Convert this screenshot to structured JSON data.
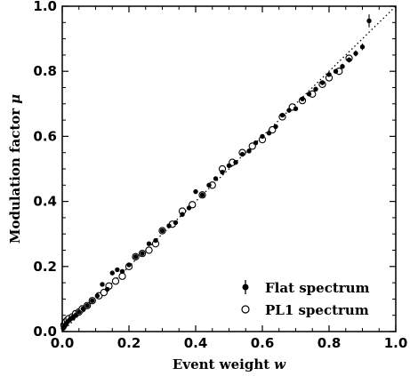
{
  "chart_data": {
    "type": "scatter",
    "title": "",
    "xlabel": "Event weight",
    "xlabel_symbol": "w",
    "ylabel": "Modulation factor",
    "ylabel_symbol": "μ",
    "xlim": [
      0.0,
      1.0
    ],
    "ylim": [
      0.0,
      1.0
    ],
    "xticks": [
      "0.0",
      "0.2",
      "0.4",
      "0.6",
      "0.8",
      "1.0"
    ],
    "yticks": [
      "0.0",
      "0.2",
      "0.4",
      "0.6",
      "0.8",
      "1.0"
    ],
    "grid": false,
    "legend_position": "bottom-right",
    "reference_line": {
      "style": "dotted",
      "from": [
        0,
        0
      ],
      "to": [
        1,
        1
      ]
    },
    "series": [
      {
        "name": "Flat spectrum",
        "marker": "filled-circle",
        "error_bars": true,
        "x": [
          0.003,
          0.006,
          0.009,
          0.012,
          0.016,
          0.021,
          0.026,
          0.032,
          0.04,
          0.05,
          0.062,
          0.075,
          0.09,
          0.105,
          0.12,
          0.135,
          0.15,
          0.165,
          0.18,
          0.2,
          0.22,
          0.24,
          0.26,
          0.28,
          0.3,
          0.32,
          0.34,
          0.36,
          0.38,
          0.4,
          0.42,
          0.44,
          0.46,
          0.48,
          0.5,
          0.52,
          0.54,
          0.56,
          0.58,
          0.6,
          0.62,
          0.64,
          0.66,
          0.68,
          0.7,
          0.72,
          0.74,
          0.76,
          0.78,
          0.8,
          0.82,
          0.84,
          0.86,
          0.88,
          0.9,
          0.92
        ],
        "y": [
          0.01,
          0.015,
          0.02,
          0.025,
          0.03,
          0.035,
          0.04,
          0.045,
          0.05,
          0.06,
          0.07,
          0.08,
          0.095,
          0.11,
          0.145,
          0.13,
          0.18,
          0.19,
          0.185,
          0.205,
          0.23,
          0.24,
          0.27,
          0.28,
          0.31,
          0.325,
          0.335,
          0.36,
          0.38,
          0.43,
          0.42,
          0.45,
          0.47,
          0.49,
          0.51,
          0.52,
          0.545,
          0.555,
          0.58,
          0.6,
          0.61,
          0.63,
          0.665,
          0.68,
          0.685,
          0.715,
          0.73,
          0.745,
          0.765,
          0.79,
          0.8,
          0.815,
          0.835,
          0.855,
          0.875,
          0.955
        ],
        "yerr": [
          0.003,
          0.003,
          0.003,
          0.003,
          0.003,
          0.003,
          0.003,
          0.003,
          0.003,
          0.003,
          0.003,
          0.003,
          0.004,
          0.004,
          0.004,
          0.004,
          0.004,
          0.004,
          0.004,
          0.004,
          0.004,
          0.004,
          0.004,
          0.004,
          0.004,
          0.004,
          0.004,
          0.004,
          0.004,
          0.005,
          0.005,
          0.005,
          0.005,
          0.005,
          0.005,
          0.005,
          0.005,
          0.005,
          0.005,
          0.005,
          0.005,
          0.006,
          0.006,
          0.006,
          0.006,
          0.006,
          0.006,
          0.006,
          0.007,
          0.007,
          0.007,
          0.008,
          0.008,
          0.009,
          0.01,
          0.02
        ]
      },
      {
        "name": "PL1 spectrum",
        "marker": "open-circle",
        "error_bars": false,
        "x": [
          0.005,
          0.01,
          0.015,
          0.02,
          0.03,
          0.04,
          0.05,
          0.06,
          0.075,
          0.09,
          0.11,
          0.125,
          0.14,
          0.16,
          0.18,
          0.2,
          0.22,
          0.24,
          0.26,
          0.28,
          0.3,
          0.33,
          0.36,
          0.39,
          0.42,
          0.45,
          0.48,
          0.51,
          0.54,
          0.57,
          0.6,
          0.63,
          0.66,
          0.69,
          0.72,
          0.75,
          0.78,
          0.8,
          0.83,
          0.86
        ],
        "y": [
          0.02,
          0.03,
          0.035,
          0.04,
          0.045,
          0.055,
          0.06,
          0.07,
          0.08,
          0.095,
          0.11,
          0.12,
          0.14,
          0.155,
          0.17,
          0.2,
          0.23,
          0.24,
          0.25,
          0.27,
          0.31,
          0.33,
          0.37,
          0.39,
          0.42,
          0.45,
          0.5,
          0.52,
          0.55,
          0.57,
          0.59,
          0.62,
          0.66,
          0.69,
          0.71,
          0.73,
          0.76,
          0.78,
          0.8,
          0.84
        ]
      }
    ]
  }
}
